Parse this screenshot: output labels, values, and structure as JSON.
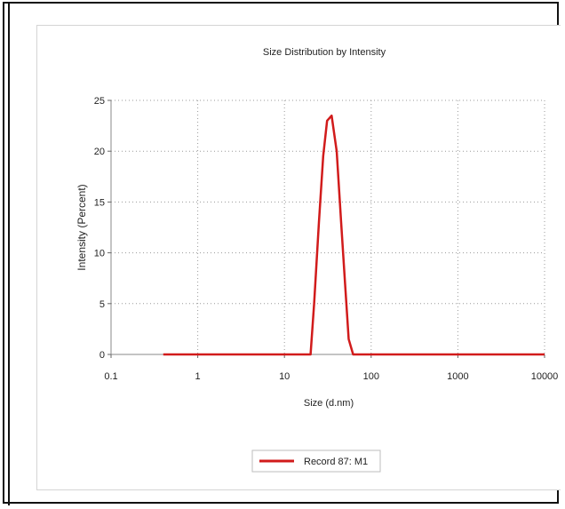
{
  "chart_data": {
    "type": "line",
    "title": "Size Distribution by Intensity",
    "xlabel": "Size (d.nm)",
    "ylabel": "Intensity (Percent)",
    "x_scale": "log",
    "xlim": [
      0.1,
      10000
    ],
    "ylim": [
      0,
      25
    ],
    "x_ticks": [
      0.1,
      1,
      10,
      100,
      1000,
      10000
    ],
    "x_tick_labels": [
      "0.1",
      "1",
      "10",
      "100",
      "1000",
      "10000"
    ],
    "y_ticks": [
      0,
      5,
      10,
      15,
      20,
      25
    ],
    "y_tick_labels": [
      "0",
      "5",
      "10",
      "15",
      "20",
      "25"
    ],
    "grid": true,
    "legend_position": "bottom-center",
    "series": [
      {
        "name": "Record 87: M1",
        "color": "#d11b1b",
        "points": [
          [
            0.4,
            0
          ],
          [
            20,
            0
          ],
          [
            22,
            5
          ],
          [
            25,
            13
          ],
          [
            28,
            19.5
          ],
          [
            31,
            23.0
          ],
          [
            35,
            23.5
          ],
          [
            40,
            20
          ],
          [
            45,
            13
          ],
          [
            50,
            7
          ],
          [
            55,
            1.5
          ],
          [
            62,
            0
          ],
          [
            10000,
            0
          ]
        ]
      }
    ]
  }
}
